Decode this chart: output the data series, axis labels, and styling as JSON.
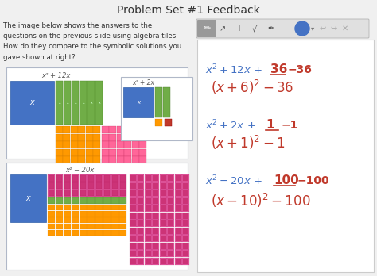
{
  "title": "Problem Set #1 Feedback",
  "bg_color": "#f0f0f0",
  "description_text": "The image below shows the answers to the\nquestions on the previous slide using algebra tiles.\nHow do they compare to the symbolic solutions you\ngave shown at right?",
  "math_blue": "#4472c4",
  "math_red": "#c0392b",
  "box1_label": "x² + 12x",
  "box2_label": "x² + 2x",
  "box3_label": "x² − 20x"
}
